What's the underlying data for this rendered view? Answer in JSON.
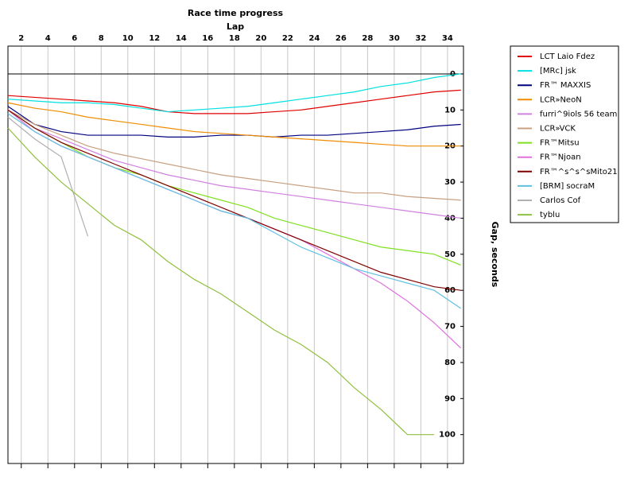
{
  "chart_data": {
    "type": "line",
    "title": "Race time progress",
    "x_label": "Lap",
    "y_label": "Gap, seconds",
    "x": [
      1,
      3,
      5,
      7,
      9,
      11,
      13,
      15,
      17,
      19,
      21,
      23,
      25,
      27,
      29,
      31,
      33,
      35
    ],
    "xlim": [
      1,
      35.2
    ],
    "xticks": [
      2,
      4,
      6,
      8,
      10,
      12,
      14,
      16,
      18,
      20,
      22,
      24,
      26,
      28,
      30,
      32,
      34
    ],
    "ylim": [
      -7.7,
      108
    ],
    "yticks": [
      0,
      10,
      20,
      30,
      40,
      50,
      60,
      70,
      80,
      90,
      100
    ],
    "y_inverted": true,
    "grid": true,
    "hline": 0,
    "legend": "right",
    "series": [
      {
        "name": "LCT Laio Fdez",
        "color": "#e00000",
        "values": [
          6,
          6.5,
          7,
          7.5,
          8,
          9,
          10.5,
          11,
          11,
          11,
          10.5,
          10,
          9,
          8,
          7,
          6,
          5,
          4.5
        ]
      },
      {
        "name": "[MRc] jsk",
        "color": "#00e0e0",
        "values": [
          7,
          7.5,
          8,
          8,
          8.5,
          9.5,
          10.5,
          10,
          9.5,
          9,
          8,
          7,
          6,
          5,
          3.5,
          2.5,
          1,
          0
        ]
      },
      {
        "name": "FR™ MAXXIS",
        "color": "#000080",
        "values": [
          9,
          14,
          16,
          17,
          17,
          17,
          17.5,
          17.5,
          17,
          17,
          17.5,
          17,
          17,
          16.5,
          16,
          15.5,
          14.5,
          14
        ]
      },
      {
        "name": "LCR»NeoN",
        "color": "#f08c00",
        "values": [
          8,
          9.5,
          10.5,
          12,
          13,
          14,
          15,
          16,
          16.5,
          17,
          17.5,
          18,
          18.5,
          19,
          19.5,
          20,
          20,
          20
        ]
      },
      {
        "name": "furri^9iols 56 team",
        "color": "#d080e0",
        "values": [
          10,
          15,
          18,
          21,
          24,
          26,
          28,
          29.5,
          31,
          32,
          33,
          34,
          35,
          36,
          37,
          38,
          39,
          40
        ]
      },
      {
        "name": "LCR»VCK",
        "color": "#c8a080",
        "values": [
          10,
          14,
          17,
          20,
          22,
          23.5,
          25,
          26.5,
          28,
          29,
          30,
          31,
          32,
          33,
          33,
          34,
          34.5,
          35
        ]
      },
      {
        "name": "FR™Mitsu",
        "color": "#80e020",
        "values": [
          10,
          15,
          19,
          23,
          26,
          28,
          31,
          33,
          35,
          37,
          40,
          42,
          44,
          46,
          48,
          49,
          50,
          53
        ]
      },
      {
        "name": "FR™Njoan",
        "color": "#e070e0",
        "values": [
          10,
          16,
          20,
          23,
          26,
          29,
          32,
          35,
          38,
          40,
          43,
          46,
          50,
          54,
          58,
          63,
          69,
          76
        ]
      },
      {
        "name": "FR™^s^s^sMito21",
        "color": "#800000",
        "values": [
          10,
          15,
          19,
          22,
          25,
          28,
          31,
          34,
          37,
          40,
          43,
          46,
          49,
          52,
          55,
          57,
          59,
          60
        ]
      },
      {
        "name": "[BRM] socraM",
        "color": "#60c0e0",
        "values": [
          11,
          16,
          20,
          23,
          26,
          29,
          32,
          35,
          38,
          40,
          44,
          48,
          51,
          54,
          56,
          58,
          60,
          65
        ]
      },
      {
        "name": "Carlos Cof",
        "color": "#b0b0b0",
        "values": [
          12,
          18,
          23,
          45,
          null,
          null,
          null,
          null,
          null,
          null,
          null,
          null,
          null,
          null,
          null,
          null,
          null,
          null
        ]
      },
      {
        "name": "tyblu",
        "color": "#90c040",
        "values": [
          15,
          23,
          30,
          36,
          42,
          46,
          52,
          57,
          61,
          66,
          71,
          75,
          80,
          87,
          93,
          100,
          100,
          null
        ]
      }
    ]
  }
}
